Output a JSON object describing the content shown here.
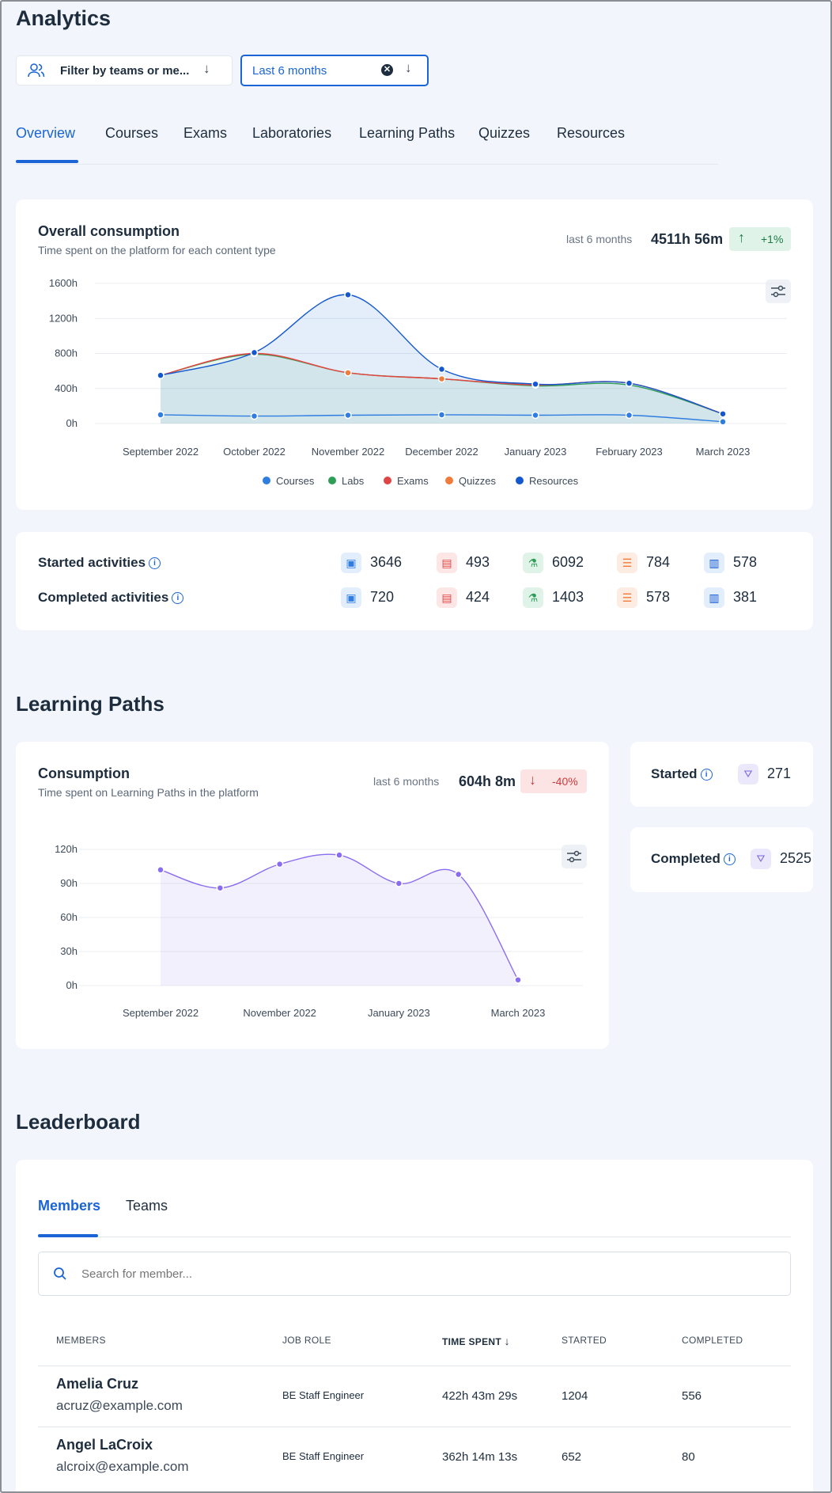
{
  "page": {
    "title": "Analytics"
  },
  "filters": {
    "teams_label": "Filter by teams or me...",
    "period_value": "Last 6 months"
  },
  "tabs": [
    "Overview",
    "Courses",
    "Exams",
    "Laboratories",
    "Learning Paths",
    "Quizzes",
    "Resources"
  ],
  "active_tab": "Overview",
  "overall": {
    "title": "Overall consumption",
    "subtitle": "Time spent on the platform for each content type",
    "period_label": "last 6 months",
    "total": "4511h 56m",
    "trend": "+1%"
  },
  "activities": {
    "started_label": "Started activities",
    "completed_label": "Completed activities",
    "started": [
      "3646",
      "493",
      "6092",
      "784",
      "578"
    ],
    "completed": [
      "720",
      "424",
      "1403",
      "578",
      "381"
    ],
    "icons": [
      "course-icon",
      "exam-icon",
      "lab-icon",
      "quiz-icon",
      "resource-icon"
    ]
  },
  "learning_paths": {
    "heading": "Learning Paths",
    "title": "Consumption",
    "subtitle": "Time spent on Learning Paths in the platform",
    "period_label": "last 6 months",
    "total": "604h 8m",
    "trend": "-40%",
    "started_label": "Started",
    "started_value": "271",
    "completed_label": "Completed",
    "completed_value": "2525"
  },
  "leaderboard": {
    "heading": "Leaderboard",
    "tabs": [
      "Members",
      "Teams"
    ],
    "active_tab": "Members",
    "search_placeholder": "Search for member...",
    "columns": [
      "MEMBERS",
      "JOB ROLE",
      "TIME SPENT",
      "STARTED",
      "COMPLETED"
    ],
    "rows": [
      {
        "name": "Amelia Cruz",
        "email": "acruz@example.com",
        "role": "BE Staff Engineer",
        "time": "422h 43m 29s",
        "started": "1204",
        "completed": "556"
      },
      {
        "name": "Angel LaCroix",
        "email": "alcroix@example.com",
        "role": "BE Staff Engineer",
        "time": "362h 14m 13s",
        "started": "652",
        "completed": "80"
      }
    ]
  },
  "colors": {
    "accent": "#1a64d6",
    "courses": "#2f7de1",
    "labs": "#2e9e57",
    "exams": "#e04545",
    "quizzes": "#f07b3a",
    "resources": "#1458d0",
    "lp": "#8a6cf0"
  },
  "chart_data": [
    {
      "type": "area",
      "categories": [
        "September 2022",
        "October 2022",
        "November 2022",
        "December 2022",
        "January 2023",
        "February 2023",
        "March 2023"
      ],
      "y_ticks": [
        "0h",
        "400h",
        "800h",
        "1200h",
        "1600h"
      ],
      "ylim": [
        0,
        1600
      ],
      "series": [
        {
          "name": "Resources",
          "values": [
            550,
            810,
            1470,
            620,
            450,
            460,
            110
          ]
        },
        {
          "name": "Quizzes",
          "values": [
            550,
            800,
            580,
            510,
            440,
            460,
            110
          ]
        },
        {
          "name": "Labs",
          "values": [
            550,
            790,
            580,
            510,
            430,
            440,
            110
          ]
        },
        {
          "name": "Exams",
          "values": [
            550,
            800,
            580,
            510,
            440,
            460,
            110
          ]
        },
        {
          "name": "Courses",
          "values": [
            100,
            85,
            95,
            100,
            95,
            95,
            20
          ]
        }
      ],
      "legend": [
        "Courses",
        "Labs",
        "Exams",
        "Quizzes",
        "Resources"
      ],
      "grid": true,
      "legend_position": "bottom"
    },
    {
      "type": "area",
      "x": [
        "September 2022",
        "October 2022",
        "November 2022",
        "December 2022",
        "January 2023",
        "February 2023",
        "March 2023"
      ],
      "x_tick_labels": [
        "September 2022",
        "November 2022",
        "January 2023",
        "March 2023"
      ],
      "y_ticks": [
        "0h",
        "30h",
        "60h",
        "90h",
        "120h"
      ],
      "ylim": [
        0,
        120
      ],
      "values": [
        102,
        86,
        107,
        115,
        90,
        98,
        5
      ],
      "grid": true
    }
  ]
}
